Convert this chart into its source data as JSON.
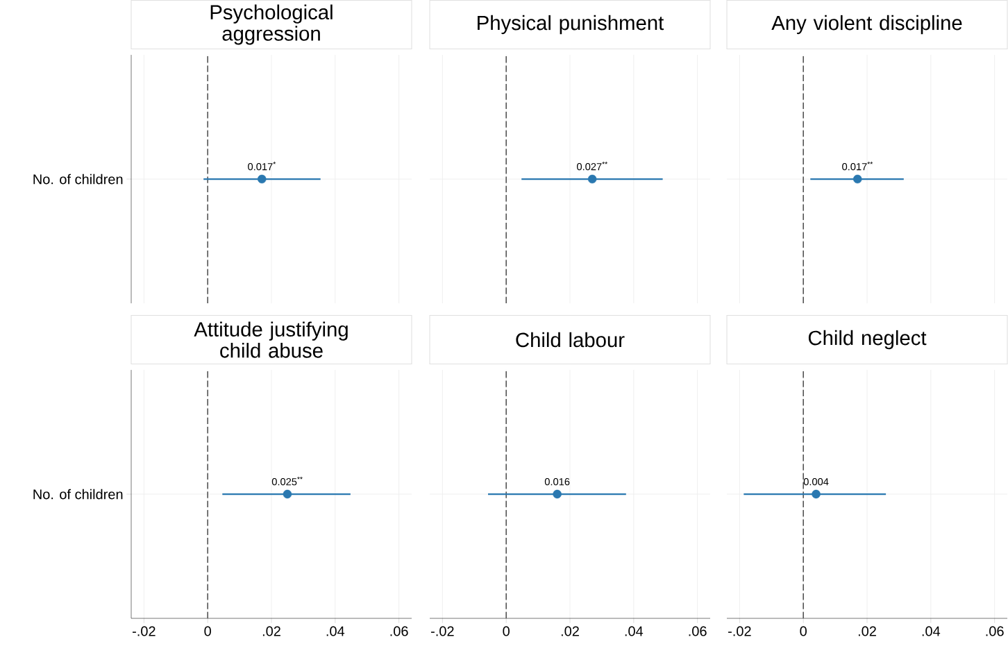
{
  "chart_data": [
    {
      "type": "scatter",
      "orientation": "horizontal",
      "title": "Psychological aggression",
      "categories": [
        "No. of children"
      ],
      "values": [
        0.017
      ],
      "errors": [
        [
          -0.0013,
          0.0354
        ]
      ],
      "value_labels": [
        "0.017$^{*}$"
      ],
      "color": "#2a78b0",
      "marker": "circle",
      "grid": true,
      "xlim": [
        -0.024,
        0.064
      ],
      "xticks": [
        {
          "value": -0.02,
          "label": null
        },
        {
          "value": 0,
          "label": null
        },
        {
          "value": 0.02,
          "label": null
        },
        {
          "value": 0.04,
          "label": null
        },
        {
          "value": 0.06,
          "label": null
        }
      ],
      "ref_lines": [
        {
          "axis": "x",
          "value": 0,
          "color": "#555555",
          "line_style": "dashed"
        }
      ],
      "tick_labels": "y"
    },
    {
      "type": "scatter",
      "orientation": "horizontal",
      "title": "Physical punishment",
      "categories": [
        null
      ],
      "values": [
        0.027
      ],
      "errors": [
        [
          0.0048,
          0.0491
        ]
      ],
      "value_labels": [
        "0.027$^{**}$"
      ],
      "color": "#2a78b0",
      "marker": "circle",
      "grid": true,
      "xlim": [
        -0.024,
        0.064
      ],
      "xticks": [
        {
          "value": -0.02,
          "label": null
        },
        {
          "value": 0,
          "label": null
        },
        {
          "value": 0.02,
          "label": null
        },
        {
          "value": 0.04,
          "label": null
        },
        {
          "value": 0.06,
          "label": null
        }
      ],
      "ref_lines": [
        {
          "axis": "x",
          "value": 0,
          "color": "#555555",
          "line_style": "dashed"
        }
      ],
      "tick_labels": false
    },
    {
      "type": "scatter",
      "orientation": "horizontal",
      "title": "Any violent discipline",
      "categories": [
        null
      ],
      "values": [
        0.017
      ],
      "errors": [
        [
          0.0022,
          0.0315
        ]
      ],
      "value_labels": [
        "0.017$^{**}$"
      ],
      "color": "#2a78b0",
      "marker": "circle",
      "grid": true,
      "xlim": [
        -0.024,
        0.064
      ],
      "xticks": [
        {
          "value": -0.02,
          "label": null
        },
        {
          "value": 0,
          "label": null
        },
        {
          "value": 0.02,
          "label": null
        },
        {
          "value": 0.04,
          "label": null
        },
        {
          "value": 0.06,
          "label": null
        }
      ],
      "ref_lines": [
        {
          "axis": "x",
          "value": 0,
          "color": "#555555",
          "line_style": "dashed"
        }
      ],
      "tick_labels": false
    },
    {
      "type": "scatter",
      "orientation": "horizontal",
      "title": "Attitude justifying child abuse",
      "categories": [
        "No. of children"
      ],
      "values": [
        0.025
      ],
      "errors": [
        [
          0.0046,
          0.0448
        ]
      ],
      "value_labels": [
        "0.025$^{**}$"
      ],
      "color": "#2a78b0",
      "marker": "circle",
      "grid": true,
      "xlim": [
        -0.024,
        0.064
      ],
      "xticks": [
        {
          "value": -0.02,
          "label": "-.02"
        },
        0,
        {
          "value": 0.02,
          "label": ".02"
        },
        {
          "value": 0.04,
          "label": ".04"
        },
        {
          "value": 0.06,
          "label": ".06"
        }
      ],
      "ref_lines": [
        {
          "axis": "x",
          "value": 0,
          "color": "#555555",
          "line_style": "dashed"
        }
      ]
    },
    {
      "type": "scatter",
      "orientation": "horizontal",
      "title": "Child labour",
      "categories": [
        null
      ],
      "values": [
        0.016
      ],
      "errors": [
        [
          -0.0057,
          0.0376
        ]
      ],
      "value_labels": [
        "0.016"
      ],
      "color": "#2a78b0",
      "marker": "circle",
      "grid": true,
      "xlim": [
        -0.024,
        0.064
      ],
      "xticks": [
        {
          "value": -0.02,
          "label": "-.02"
        },
        0,
        {
          "value": 0.02,
          "label": ".02"
        },
        {
          "value": 0.04,
          "label": ".04"
        },
        {
          "value": 0.06,
          "label": ".06"
        }
      ],
      "ref_lines": [
        {
          "axis": "x",
          "value": 0,
          "color": "#555555",
          "line_style": "dashed"
        }
      ],
      "tick_labels": "x"
    },
    {
      "type": "scatter",
      "orientation": "horizontal",
      "title": "Child neglect",
      "categories": [
        null
      ],
      "values": [
        0.004
      ],
      "errors": [
        [
          -0.0187,
          0.0259
        ]
      ],
      "value_labels": [
        "0.004"
      ],
      "color": "#2a78b0",
      "marker": "circle",
      "grid": true,
      "xlim": [
        -0.024,
        0.064
      ],
      "xticks": [
        {
          "value": -0.02,
          "label": "-.02"
        },
        0,
        {
          "value": 0.02,
          "label": ".02"
        },
        {
          "value": 0.04,
          "label": ".04"
        },
        {
          "value": 0.06,
          "label": ".06"
        }
      ],
      "ref_lines": [
        {
          "axis": "x",
          "value": 0,
          "color": "#555555",
          "line_style": "dashed"
        }
      ],
      "tick_labels": "x"
    }
  ]
}
